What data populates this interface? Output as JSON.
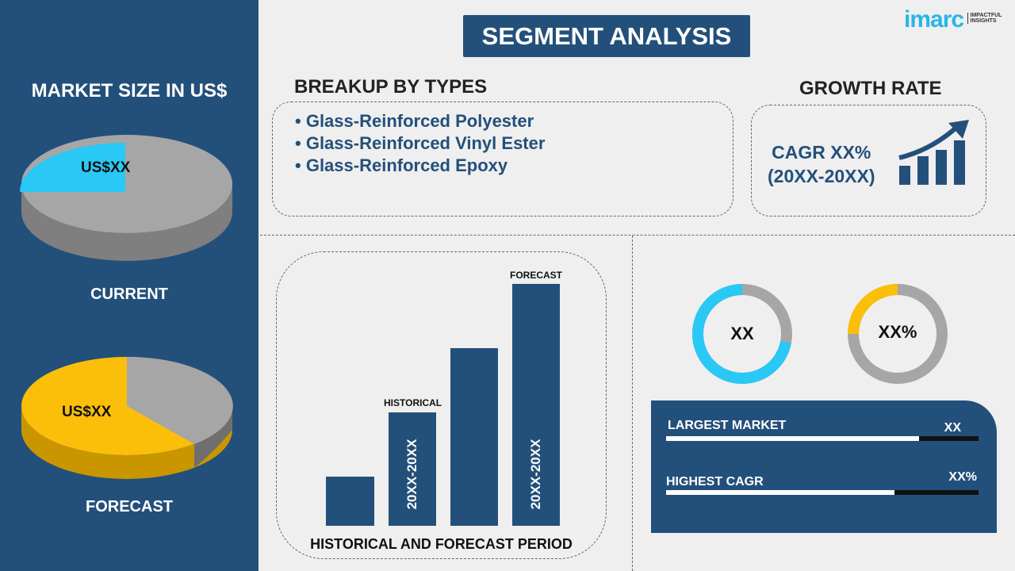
{
  "colors": {
    "navy": "#23507a",
    "cyan": "#29c8f5",
    "yellow": "#fbbf0a",
    "gray": "#a6a6a6"
  },
  "logo": {
    "text": "imarc",
    "tagline": "IMPACTFUL INSIGHTS"
  },
  "title": "SEGMENT ANALYSIS",
  "left": {
    "heading": "MARKET SIZE IN US$",
    "current": {
      "label": "CURRENT",
      "value": "US$XX",
      "share": 0.25
    },
    "forecast": {
      "label": "FORECAST",
      "value": "US$XX",
      "share": 0.6
    }
  },
  "breakup": {
    "heading": "BREAKUP BY TYPES",
    "items": [
      "Glass-Reinforced Polyester",
      "Glass-Reinforced Vinyl Ester",
      "Glass-Reinforced Epoxy"
    ]
  },
  "growth": {
    "heading": "GROWTH RATE",
    "line1": "CAGR XX%",
    "line2": "(20XX-20XX)",
    "icon": "growth-chart-icon"
  },
  "bars": {
    "footer": "HISTORICAL AND FORECAST PERIOD",
    "historical": "HISTORICAL",
    "forecast": "FORECAST",
    "hist_period": "20XX-20XX",
    "fore_period": "20XX-20XX"
  },
  "donuts": [
    {
      "value": "XX",
      "share": 0.72
    },
    {
      "value": "XX%",
      "share": 0.25
    }
  ],
  "stats": [
    {
      "label": "LARGEST MARKET",
      "value": "XX",
      "fill": 0.81
    },
    {
      "label": "HIGHEST CAGR",
      "value": "XX%",
      "fill": 0.73
    }
  ]
}
